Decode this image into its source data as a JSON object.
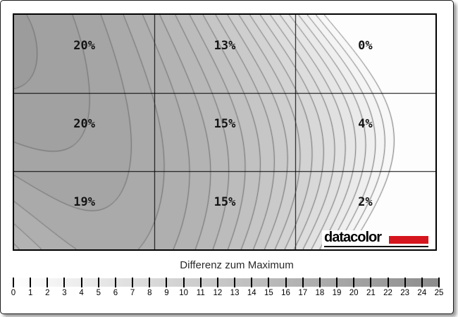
{
  "page": {
    "background_color": "#ffffff"
  },
  "chart_data": {
    "type": "heatmap",
    "subtype": "filled-contour-luminance-uniformity-map",
    "title": "Differenz zum Maximum",
    "grid": {
      "rows": 3,
      "cols": 3,
      "grid_lines": true
    },
    "values": [
      [
        20,
        13,
        0
      ],
      [
        20,
        15,
        4
      ],
      [
        19,
        15,
        2
      ]
    ],
    "cell_labels": [
      [
        "20%",
        "13%",
        "0%"
      ],
      [
        "20%",
        "15%",
        "4%"
      ],
      [
        "19%",
        "15%",
        "2%"
      ]
    ],
    "value_unit": "%",
    "contour_interval": 1,
    "contour_line_color": "#6e6e6e",
    "grid_line_color": "#000000",
    "colorbar": {
      "min": 0,
      "max": 25,
      "tick_labels": [
        "0",
        "1",
        "2",
        "3",
        "4",
        "5",
        "6",
        "7",
        "8",
        "9",
        "10",
        "11",
        "12",
        "13",
        "14",
        "15",
        "16",
        "17",
        "18",
        "19",
        "20",
        "21",
        "22",
        "23",
        "24",
        "25"
      ],
      "min_color": "#ffffff",
      "max_color": "#8c8c8c"
    },
    "legend_position": "bottom"
  },
  "branding": {
    "logo_text": "datacolor",
    "logo_text_color": "#000000",
    "logo_accent_color": "#d6161e"
  }
}
